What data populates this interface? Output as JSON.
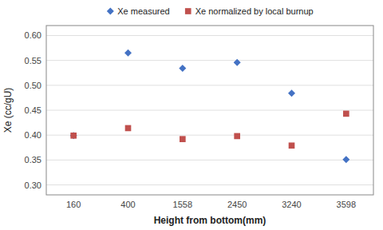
{
  "chart_data": {
    "type": "scatter",
    "xlabel": "Height from bottom(mm)",
    "ylabel": "Xe (cc/gU)",
    "categories": [
      "160",
      "400",
      "1558",
      "2450",
      "3240",
      "3598"
    ],
    "series": [
      {
        "name": "Xe measured",
        "color": "#4472C4",
        "marker": "diamond",
        "values": [
          0.399,
          0.565,
          0.534,
          0.546,
          0.484,
          0.351
        ]
      },
      {
        "name": "Xe normalized by local burnup",
        "color": "#C0504D",
        "marker": "square",
        "values": [
          0.399,
          0.414,
          0.392,
          0.398,
          0.379,
          0.443
        ]
      }
    ],
    "ylim": [
      0.28,
      0.62
    ],
    "yticks": [
      {
        "value": 0.3,
        "label": "0.30"
      },
      0.35,
      {
        "value": 0.4,
        "label": "0.40"
      },
      0.45,
      {
        "value": 0.5,
        "label": "0.50"
      },
      0.55,
      {
        "value": 0.6,
        "label": "0.60"
      }
    ],
    "grid": true,
    "legend": "top"
  }
}
